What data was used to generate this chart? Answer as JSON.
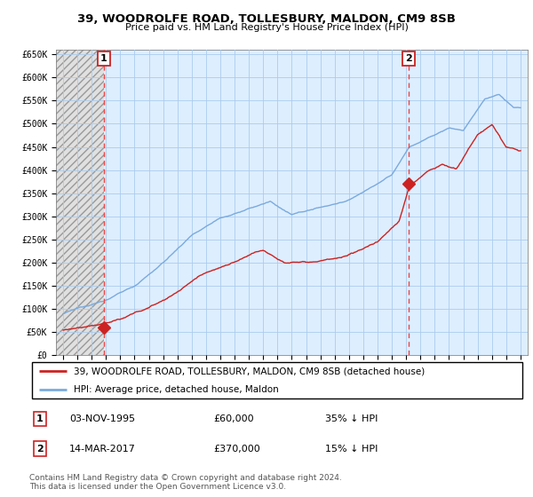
{
  "title": "39, WOODROLFE ROAD, TOLLESBURY, MALDON, CM9 8SB",
  "subtitle": "Price paid vs. HM Land Registry's House Price Index (HPI)",
  "hpi_color": "#7aaadd",
  "price_color": "#cc2222",
  "vline_color": "#ee4444",
  "grid_color": "#aaccee",
  "bg_color": "#ddeeff",
  "hatch_color": "#cccccc",
  "ylim": [
    0,
    660000
  ],
  "yticks": [
    0,
    50000,
    100000,
    150000,
    200000,
    250000,
    300000,
    350000,
    400000,
    450000,
    500000,
    550000,
    600000,
    650000
  ],
  "ytick_labels": [
    "£0",
    "£50K",
    "£100K",
    "£150K",
    "£200K",
    "£250K",
    "£300K",
    "£350K",
    "£400K",
    "£450K",
    "£500K",
    "£550K",
    "£600K",
    "£650K"
  ],
  "xlim_start": 1992.5,
  "xlim_end": 2025.5,
  "sale1_year": 1995.84,
  "sale1_price": 60000,
  "sale2_year": 2017.2,
  "sale2_price": 370000,
  "legend_line1": "39, WOODROLFE ROAD, TOLLESBURY, MALDON, CM9 8SB (detached house)",
  "legend_line2": "HPI: Average price, detached house, Maldon",
  "footnote": "Contains HM Land Registry data © Crown copyright and database right 2024.\nThis data is licensed under the Open Government Licence v3.0."
}
